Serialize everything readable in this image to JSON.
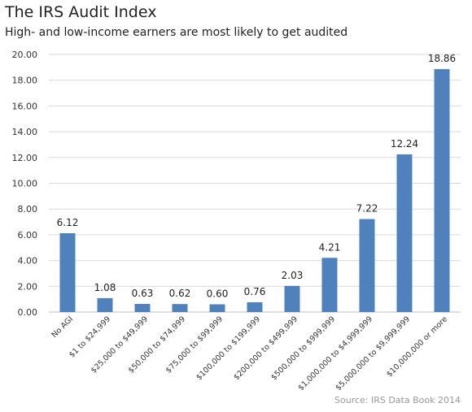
{
  "chart_data": {
    "type": "bar",
    "title": "The IRS Audit Index",
    "subtitle": "High- and low-income earners are most likely to get audited",
    "xlabel": "",
    "ylabel": "",
    "categories": [
      "No AGI",
      "$1 to $24,999",
      "$25,000 to $49,999",
      "$50,000 to $74,999",
      "$75,000 to $99,999",
      "$100,000 to $199,999",
      "$200,000 to $499,999",
      "$500,000 to $999,999",
      "$1,000,000 to $4,999,999",
      "$5,000,000 to $9,999,999",
      "$10,000,000 or more"
    ],
    "values": [
      6.12,
      1.08,
      0.63,
      0.62,
      0.6,
      0.76,
      2.03,
      4.21,
      7.22,
      12.24,
      18.86
    ],
    "value_labels": [
      "6.12",
      "1.08",
      "0.63",
      "0.62",
      "0.60",
      "0.76",
      "2.03",
      "4.21",
      "7.22",
      "12.24",
      "18.86"
    ],
    "ylim": [
      0,
      20
    ],
    "y_ticks": [
      "0.00",
      "2.00",
      "4.00",
      "6.00",
      "8.00",
      "10.00",
      "12.00",
      "14.00",
      "16.00",
      "18.00",
      "20.00"
    ],
    "grid": true,
    "bar_color": "#4f81bd",
    "source": "Source: IRS Data Book 2014"
  }
}
